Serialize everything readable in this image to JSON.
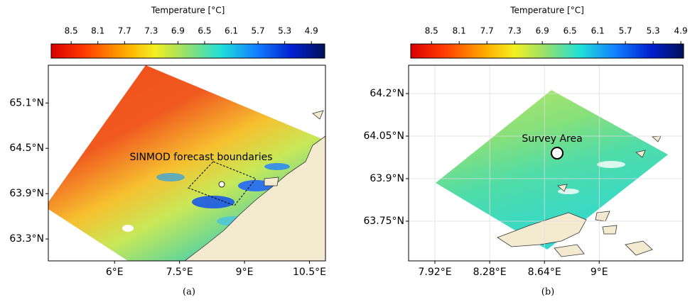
{
  "panels": [
    {
      "colorbar": {
        "title": "Temperature [°C]",
        "clim": [
          8.8,
          4.7
        ],
        "ticks": [
          8.5,
          8.1,
          7.7,
          7.3,
          6.9,
          6.5,
          6.1,
          5.7,
          5.3,
          4.9
        ]
      },
      "xlim": [
        4.47,
        10.87
      ],
      "ylim": [
        63.01,
        65.6
      ],
      "xticks": [
        {
          "value": 6,
          "label": "6°E"
        },
        {
          "value": 7.5,
          "label": "7.5°E"
        },
        {
          "value": 9,
          "label": "9°E"
        },
        {
          "value": 10.5,
          "label": "10.5°E"
        }
      ],
      "yticks": [
        {
          "value": 65.1,
          "label": "65.1°N"
        },
        {
          "value": 64.5,
          "label": "64.5°N"
        },
        {
          "value": 63.9,
          "label": "63.9°N"
        },
        {
          "value": 63.3,
          "label": "63.3°N"
        }
      ],
      "grid": false,
      "annotation": "SINMOD forecast boundaries",
      "caption": "(a)"
    },
    {
      "colorbar": {
        "title": "Temperature [°C]",
        "clim": [
          8.8,
          4.86
        ],
        "ticks": [
          8.5,
          8.1,
          7.7,
          7.3,
          6.9,
          6.5,
          6.1,
          5.7,
          5.3,
          4.9
        ]
      },
      "xlim": [
        7.747,
        9.55
      ],
      "ylim": [
        63.61,
        64.3
      ],
      "xticks": [
        {
          "value": 7.92,
          "label": "7.92°E"
        },
        {
          "value": 8.28,
          "label": "8.28°E"
        },
        {
          "value": 8.64,
          "label": "8.64°E"
        },
        {
          "value": 9,
          "label": "9°E"
        }
      ],
      "yticks": [
        {
          "value": 64.2,
          "label": "64.2°N"
        },
        {
          "value": 64.05,
          "label": "64.05°N"
        },
        {
          "value": 63.9,
          "label": "63.9°N"
        },
        {
          "value": 63.75,
          "label": "63.75°N"
        }
      ],
      "grid": true,
      "annotation": "Survey Area",
      "caption": "(b)"
    }
  ]
}
